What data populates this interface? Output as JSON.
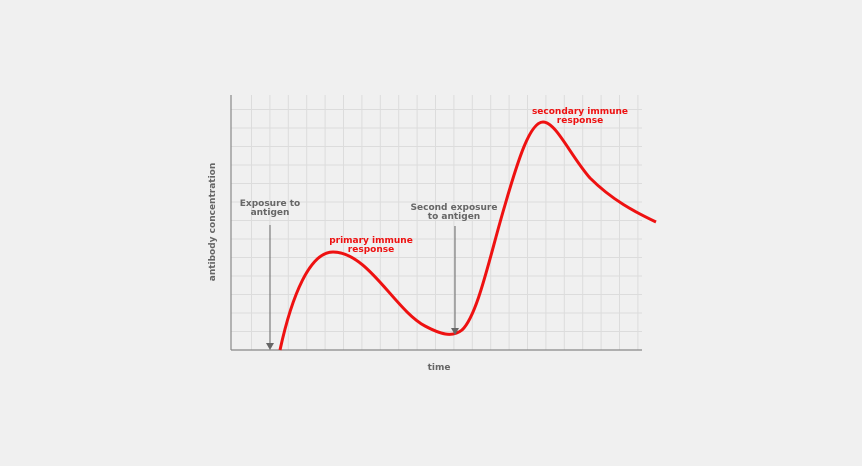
{
  "axes": {
    "xlabel": "time",
    "ylabel": "antibody concentration"
  },
  "annotations": {
    "first_exposure": [
      "Exposure to",
      "antigen"
    ],
    "second_exposure": [
      "Second exposure",
      "to antigen"
    ],
    "primary": [
      "primary immune",
      "response"
    ],
    "secondary": [
      "secondary immune",
      "response"
    ]
  },
  "colors": {
    "curve": "#ee1111",
    "annotation": "#666666",
    "grid": "#dcdcdc",
    "axis": "#888888"
  }
}
